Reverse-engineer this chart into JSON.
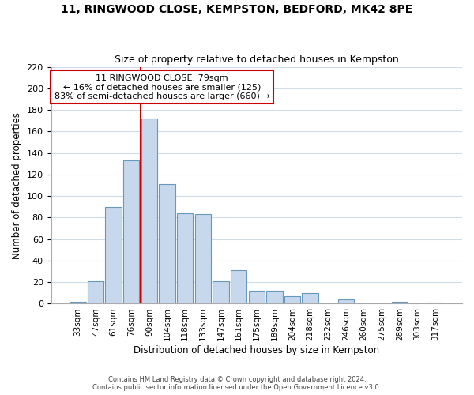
{
  "title": "11, RINGWOOD CLOSE, KEMPSTON, BEDFORD, MK42 8PE",
  "subtitle": "Size of property relative to detached houses in Kempston",
  "xlabel": "Distribution of detached houses by size in Kempston",
  "ylabel": "Number of detached properties",
  "bar_labels": [
    "33sqm",
    "47sqm",
    "61sqm",
    "76sqm",
    "90sqm",
    "104sqm",
    "118sqm",
    "133sqm",
    "147sqm",
    "161sqm",
    "175sqm",
    "189sqm",
    "204sqm",
    "218sqm",
    "232sqm",
    "246sqm",
    "260sqm",
    "275sqm",
    "289sqm",
    "303sqm",
    "317sqm"
  ],
  "bar_values": [
    2,
    21,
    90,
    133,
    172,
    111,
    84,
    83,
    21,
    31,
    12,
    12,
    7,
    10,
    0,
    4,
    0,
    0,
    2,
    0,
    1
  ],
  "bar_color": "#c8d8ec",
  "bar_edgecolor": "#6699bb",
  "ylim": [
    0,
    220
  ],
  "yticks": [
    0,
    20,
    40,
    60,
    80,
    100,
    120,
    140,
    160,
    180,
    200,
    220
  ],
  "vline_x": 3.5,
  "vline_color": "#cc0000",
  "annotation_title": "11 RINGWOOD CLOSE: 79sqm",
  "annotation_line1": "← 16% of detached houses are smaller (125)",
  "annotation_line2": "83% of semi-detached houses are larger (660) →",
  "annotation_box_color": "#ffffff",
  "annotation_box_edgecolor": "#cc0000",
  "footer1": "Contains HM Land Registry data © Crown copyright and database right 2024.",
  "footer2": "Contains public sector information licensed under the Open Government Licence v3.0.",
  "background_color": "#ffffff",
  "grid_color": "#d0dce8"
}
